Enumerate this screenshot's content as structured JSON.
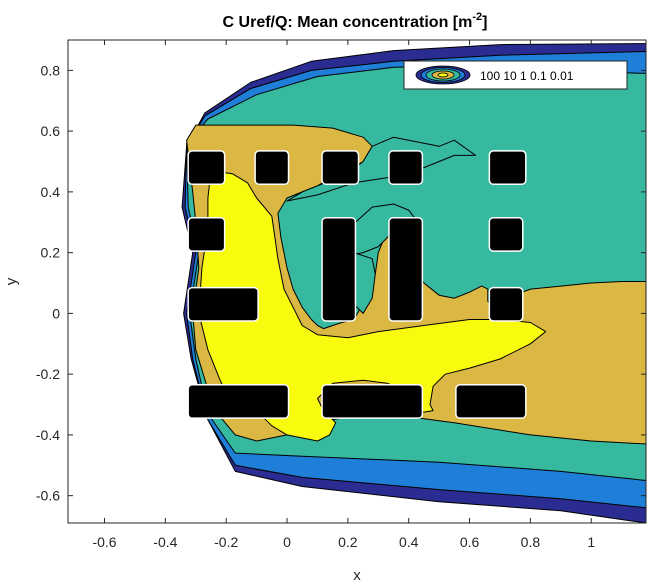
{
  "chart_data": {
    "type": "heatmap",
    "title": {
      "main": "C Uref/Q: Mean concentration [m",
      "sup": "-2",
      "close": "]"
    },
    "xlabel": "x",
    "ylabel": "y",
    "xlim": [
      -0.72,
      1.18
    ],
    "ylim": [
      -0.69,
      0.9
    ],
    "xticks": [
      -0.6,
      -0.4,
      -0.2,
      0,
      0.2,
      0.4,
      0.6,
      0.8,
      1
    ],
    "xtick_labels": [
      "-0.6",
      "-0.4",
      "-0.2",
      "0",
      "0.2",
      "0.4",
      "0.6",
      "0.8",
      "1"
    ],
    "yticks": [
      -0.6,
      -0.4,
      -0.2,
      0,
      0.2,
      0.4,
      0.6,
      0.8
    ],
    "ytick_labels": [
      "-0.6",
      "-0.4",
      "-0.2",
      "0",
      "0.2",
      "0.4",
      "0.6",
      "0.8"
    ],
    "contour_levels": [
      100,
      10,
      1,
      0.1,
      0.01
    ],
    "level_colors": [
      "#f9fb0e",
      "#dbb843",
      "#36b99e",
      "#1e7ed8",
      "#2b2c91"
    ],
    "legend": {
      "location": "top-right",
      "text": "100 10 1 0.1 0.01"
    },
    "regions": [
      {
        "level": 0.01,
        "points": [
          [
            -0.33,
            0.55
          ],
          [
            -0.27,
            0.66
          ],
          [
            -0.12,
            0.76
          ],
          [
            0.08,
            0.83
          ],
          [
            0.35,
            0.865
          ],
          [
            0.7,
            0.885
          ],
          [
            1.18,
            0.888
          ],
          [
            1.18,
            -0.69
          ],
          [
            0.9,
            -0.65
          ],
          [
            0.5,
            -0.62
          ],
          [
            0.05,
            -0.57
          ],
          [
            -0.17,
            -0.52
          ],
          [
            -0.26,
            -0.35
          ],
          [
            -0.315,
            -0.15
          ],
          [
            -0.34,
            0.0
          ],
          [
            -0.31,
            0.2
          ],
          [
            -0.345,
            0.35
          ],
          [
            -0.33,
            0.55
          ]
        ]
      },
      {
        "level": 0.1,
        "points": [
          [
            -0.33,
            0.55
          ],
          [
            -0.27,
            0.65
          ],
          [
            -0.12,
            0.74
          ],
          [
            0.08,
            0.8
          ],
          [
            0.35,
            0.83
          ],
          [
            0.7,
            0.85
          ],
          [
            1.18,
            0.862
          ],
          [
            1.18,
            -0.64
          ],
          [
            0.9,
            -0.61
          ],
          [
            0.5,
            -0.58
          ],
          [
            0.05,
            -0.54
          ],
          [
            -0.17,
            -0.5
          ],
          [
            -0.26,
            -0.35
          ],
          [
            -0.31,
            -0.15
          ],
          [
            -0.33,
            0.0
          ],
          [
            -0.3,
            0.2
          ],
          [
            -0.335,
            0.35
          ],
          [
            -0.33,
            0.55
          ]
        ]
      },
      {
        "level": 1,
        "points": [
          [
            -0.33,
            0.56
          ],
          [
            -0.26,
            0.64
          ],
          [
            -0.1,
            0.72
          ],
          [
            0.1,
            0.78
          ],
          [
            0.35,
            0.81
          ],
          [
            0.6,
            0.815
          ],
          [
            0.85,
            0.8
          ],
          [
            1.18,
            0.79
          ],
          [
            1.18,
            -0.55
          ],
          [
            0.9,
            -0.52
          ],
          [
            0.5,
            -0.49
          ],
          [
            0.05,
            -0.47
          ],
          [
            -0.17,
            -0.46
          ],
          [
            -0.26,
            -0.33
          ],
          [
            -0.3,
            -0.15
          ],
          [
            -0.32,
            0.0
          ],
          [
            -0.29,
            0.2
          ],
          [
            -0.325,
            0.35
          ],
          [
            -0.33,
            0.56
          ]
        ]
      },
      {
        "level": 10,
        "points": [
          [
            -0.33,
            0.57
          ],
          [
            -0.3,
            0.62
          ],
          [
            -0.15,
            0.62
          ],
          [
            0.02,
            0.62
          ],
          [
            0.15,
            0.61
          ],
          [
            0.25,
            0.58
          ],
          [
            0.28,
            0.55
          ],
          [
            0.25,
            0.5
          ],
          [
            0.2,
            0.47
          ],
          [
            0.15,
            0.45
          ],
          [
            0.1,
            0.42
          ],
          [
            0.05,
            0.4
          ],
          [
            0.0,
            0.38
          ],
          [
            -0.03,
            0.33
          ],
          [
            -0.02,
            0.25
          ],
          [
            0.0,
            0.15
          ],
          [
            0.02,
            0.08
          ],
          [
            0.05,
            0.02
          ],
          [
            0.08,
            -0.02
          ],
          [
            0.1,
            -0.04
          ],
          [
            0.12,
            -0.05
          ],
          [
            0.18,
            -0.03
          ],
          [
            0.22,
            -0.02
          ],
          [
            0.26,
            0.05
          ],
          [
            0.29,
            0.13
          ],
          [
            0.3,
            0.2
          ],
          [
            0.32,
            0.25
          ],
          [
            0.35,
            0.28
          ],
          [
            0.37,
            0.26
          ],
          [
            0.38,
            0.2
          ],
          [
            0.4,
            0.15
          ],
          [
            0.45,
            0.1
          ],
          [
            0.5,
            0.06
          ],
          [
            0.55,
            0.05
          ],
          [
            0.6,
            0.07
          ],
          [
            0.64,
            0.09
          ],
          [
            0.66,
            0.08
          ],
          [
            0.66,
            0.04
          ],
          [
            0.68,
            0.02
          ],
          [
            0.72,
            0.05
          ],
          [
            0.8,
            0.08
          ],
          [
            0.9,
            0.09
          ],
          [
            1.0,
            0.1
          ],
          [
            1.1,
            0.105
          ],
          [
            1.18,
            0.105
          ],
          [
            1.18,
            -0.43
          ],
          [
            1.0,
            -0.42
          ],
          [
            0.8,
            -0.4
          ],
          [
            0.55,
            -0.36
          ],
          [
            0.4,
            -0.34
          ],
          [
            0.25,
            -0.33
          ],
          [
            0.1,
            -0.36
          ],
          [
            0.0,
            -0.4
          ],
          [
            -0.1,
            -0.42
          ],
          [
            -0.17,
            -0.4
          ],
          [
            -0.22,
            -0.34
          ],
          [
            -0.26,
            -0.25
          ],
          [
            -0.3,
            -0.12
          ],
          [
            -0.31,
            0.0
          ],
          [
            -0.29,
            0.15
          ],
          [
            -0.3,
            0.3
          ],
          [
            -0.31,
            0.4
          ],
          [
            -0.33,
            0.57
          ]
        ]
      },
      {
        "level": 1,
        "points": [
          [
            0.17,
            0.25
          ],
          [
            0.28,
            0.35
          ],
          [
            0.35,
            0.36
          ],
          [
            0.4,
            0.34
          ],
          [
            0.43,
            0.3
          ],
          [
            0.38,
            0.28
          ],
          [
            0.34,
            0.26
          ],
          [
            0.3,
            0.22
          ],
          [
            0.25,
            0.2
          ],
          [
            0.2,
            0.19
          ],
          [
            0.17,
            0.25
          ]
        ]
      },
      {
        "level": 1,
        "points": [
          [
            0.17,
            0.17
          ],
          [
            0.2,
            0.05
          ],
          [
            0.25,
            0.0
          ],
          [
            0.28,
            0.05
          ],
          [
            0.29,
            0.13
          ],
          [
            0.28,
            0.18
          ],
          [
            0.22,
            0.2
          ],
          [
            0.17,
            0.17
          ]
        ]
      },
      {
        "level": 1,
        "points": [
          [
            0.0,
            0.37
          ],
          [
            0.05,
            0.4
          ],
          [
            0.1,
            0.42
          ],
          [
            0.15,
            0.44
          ],
          [
            0.2,
            0.46
          ],
          [
            0.25,
            0.5
          ],
          [
            0.28,
            0.55
          ],
          [
            0.35,
            0.58
          ],
          [
            0.45,
            0.56
          ],
          [
            0.5,
            0.55
          ],
          [
            0.55,
            0.57
          ],
          [
            0.62,
            0.52
          ],
          [
            0.55,
            0.52
          ],
          [
            0.45,
            0.48
          ],
          [
            0.35,
            0.45
          ],
          [
            0.22,
            0.43
          ],
          [
            0.1,
            0.39
          ],
          [
            0.0,
            0.37
          ]
        ]
      },
      {
        "level": 100,
        "points": [
          [
            -0.25,
            0.47
          ],
          [
            -0.18,
            0.46
          ],
          [
            -0.13,
            0.43
          ],
          [
            -0.1,
            0.38
          ],
          [
            -0.05,
            0.32
          ],
          [
            -0.04,
            0.25
          ],
          [
            -0.03,
            0.18
          ],
          [
            -0.01,
            0.08
          ],
          [
            0.02,
            0.02
          ],
          [
            0.05,
            -0.04
          ],
          [
            0.1,
            -0.07
          ],
          [
            0.2,
            -0.08
          ],
          [
            0.3,
            -0.06
          ],
          [
            0.45,
            -0.04
          ],
          [
            0.6,
            -0.02
          ],
          [
            0.7,
            -0.02
          ],
          [
            0.8,
            -0.03
          ],
          [
            0.85,
            -0.06
          ],
          [
            0.8,
            -0.1
          ],
          [
            0.7,
            -0.15
          ],
          [
            0.6,
            -0.18
          ],
          [
            0.52,
            -0.2
          ],
          [
            0.48,
            -0.24
          ],
          [
            0.47,
            -0.3
          ],
          [
            0.48,
            -0.32
          ],
          [
            0.42,
            -0.33
          ],
          [
            0.4,
            -0.3
          ],
          [
            0.38,
            -0.25
          ],
          [
            0.33,
            -0.23
          ],
          [
            0.25,
            -0.22
          ],
          [
            0.15,
            -0.23
          ],
          [
            0.1,
            -0.28
          ],
          [
            0.12,
            -0.32
          ],
          [
            0.16,
            -0.36
          ],
          [
            0.14,
            -0.4
          ],
          [
            0.1,
            -0.42
          ],
          [
            0.0,
            -0.4
          ],
          [
            -0.05,
            -0.37
          ],
          [
            -0.08,
            -0.34
          ],
          [
            -0.14,
            -0.32
          ],
          [
            -0.18,
            -0.3
          ],
          [
            -0.22,
            -0.22
          ],
          [
            -0.26,
            -0.12
          ],
          [
            -0.29,
            0.0
          ],
          [
            -0.28,
            0.15
          ],
          [
            -0.26,
            0.28
          ],
          [
            -0.26,
            0.38
          ],
          [
            -0.25,
            0.47
          ]
        ]
      }
    ],
    "buildings": [
      {
        "x0": -0.32,
        "x1": -0.21,
        "y0": 0.43,
        "y1": 0.53
      },
      {
        "x0": -0.1,
        "x1": 0.0,
        "y0": 0.43,
        "y1": 0.53
      },
      {
        "x0": 0.12,
        "x1": 0.23,
        "y0": 0.43,
        "y1": 0.53
      },
      {
        "x0": 0.34,
        "x1": 0.44,
        "y0": 0.43,
        "y1": 0.53
      },
      {
        "x0": 0.67,
        "x1": 0.78,
        "y0": 0.43,
        "y1": 0.53
      },
      {
        "x0": -0.32,
        "x1": -0.21,
        "y0": 0.21,
        "y1": 0.31
      },
      {
        "x0": 0.67,
        "x1": 0.77,
        "y0": 0.21,
        "y1": 0.31
      },
      {
        "x0": 0.12,
        "x1": 0.22,
        "y0": -0.02,
        "y1": 0.31
      },
      {
        "x0": 0.34,
        "x1": 0.44,
        "y0": -0.02,
        "y1": 0.31
      },
      {
        "x0": -0.32,
        "x1": -0.1,
        "y0": -0.02,
        "y1": 0.08
      },
      {
        "x0": 0.67,
        "x1": 0.77,
        "y0": -0.02,
        "y1": 0.08
      },
      {
        "x0": -0.32,
        "x1": 0.0,
        "y0": -0.34,
        "y1": -0.24
      },
      {
        "x0": 0.12,
        "x1": 0.44,
        "y0": -0.34,
        "y1": -0.24
      },
      {
        "x0": 0.56,
        "x1": 0.78,
        "y0": -0.34,
        "y1": -0.24
      }
    ]
  }
}
